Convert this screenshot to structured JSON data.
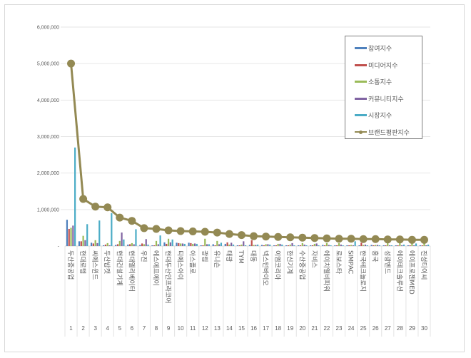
{
  "chart_data": {
    "type": "bar+line",
    "title": "",
    "xlabel": "",
    "ylabel": "",
    "ylim": [
      0,
      6000000
    ],
    "yticks": [
      "-",
      "1,000,000",
      "2,000,000",
      "3,000,000",
      "4,000,000",
      "5,000,000",
      "6,000,000"
    ],
    "grid": true,
    "legend_position": "top-right-inside",
    "categories": [
      "두산중공업",
      "현대로템",
      "씨에스윈드",
      "두산밥캣",
      "현대건설기계",
      "현대엘리베이터",
      "우진",
      "에스에프에이",
      "현대두산인프라코어",
      "티에스아이",
      "아스플로",
      "광림",
      "유니슨",
      "태광",
      "TYM",
      "대동",
      "넥스턴바이오",
      "이엠코리아",
      "한신기계",
      "수산중공업",
      "자비스",
      "에이치엘비파워",
      "로보스타",
      "SIMPAC",
      "한국테크놀로지",
      "흥국",
      "성광벤드",
      "에이테크솔루션",
      "에이프로젠MED",
      "진성티이씨"
    ],
    "ranks": [
      "1",
      "2",
      "3",
      "4",
      "5",
      "6",
      "7",
      "8",
      "9",
      "10",
      "11",
      "12",
      "13",
      "14",
      "15",
      "16",
      "17",
      "18",
      "19",
      "20",
      "21",
      "22",
      "23",
      "24",
      "25",
      "26",
      "27",
      "28",
      "29",
      "30"
    ],
    "series": [
      {
        "name": "참여지수",
        "kind": "bar",
        "color": "#4f81bd",
        "values": [
          720000,
          130000,
          90000,
          20000,
          30000,
          40000,
          30000,
          20000,
          100000,
          90000,
          90000,
          20000,
          50000,
          60000,
          20000,
          30000,
          30000,
          20000,
          20000,
          20000,
          20000,
          30000,
          20000,
          20000,
          20000,
          30000,
          20000,
          20000,
          20000,
          20000
        ]
      },
      {
        "name": "미디어지수",
        "kind": "bar",
        "color": "#c0504d",
        "values": [
          470000,
          130000,
          70000,
          40000,
          50000,
          50000,
          70000,
          20000,
          60000,
          80000,
          80000,
          20000,
          20000,
          100000,
          20000,
          160000,
          20000,
          20000,
          20000,
          20000,
          20000,
          20000,
          20000,
          20000,
          90000,
          20000,
          20000,
          20000,
          20000,
          20000
        ]
      },
      {
        "name": "소통지수",
        "kind": "bar",
        "color": "#9bbb59",
        "values": [
          500000,
          280000,
          160000,
          80000,
          140000,
          80000,
          50000,
          140000,
          200000,
          70000,
          60000,
          200000,
          140000,
          40000,
          40000,
          30000,
          50000,
          60000,
          40000,
          80000,
          60000,
          80000,
          80000,
          30000,
          30000,
          30000,
          100000,
          100000,
          100000,
          130000
        ]
      },
      {
        "name": "커뮤니티지수",
        "kind": "bar",
        "color": "#8064a2",
        "values": [
          560000,
          160000,
          80000,
          20000,
          370000,
          50000,
          190000,
          50000,
          100000,
          70000,
          70000,
          50000,
          50000,
          90000,
          130000,
          30000,
          50000,
          60000,
          80000,
          40000,
          70000,
          30000,
          40000,
          20000,
          40000,
          30000,
          20000,
          20000,
          20000,
          20000
        ]
      },
      {
        "name": "시장지수",
        "kind": "bar",
        "color": "#4bacc6",
        "values": [
          2700000,
          600000,
          700000,
          900000,
          180000,
          460000,
          40000,
          290000,
          180000,
          60000,
          60000,
          50000,
          90000,
          40000,
          20000,
          40000,
          40000,
          40000,
          20000,
          20000,
          20000,
          20000,
          20000,
          130000,
          20000,
          20000,
          20000,
          40000,
          70000,
          40000
        ]
      },
      {
        "name": "브랜드평판지수",
        "kind": "line",
        "color": "#938953",
        "values": [
          5000000,
          1290000,
          1080000,
          1060000,
          780000,
          690000,
          490000,
          470000,
          430000,
          410000,
          400000,
          390000,
          370000,
          330000,
          300000,
          270000,
          260000,
          250000,
          240000,
          230000,
          220000,
          210000,
          200000,
          200000,
          190000,
          190000,
          180000,
          180000,
          170000,
          170000
        ]
      }
    ]
  }
}
